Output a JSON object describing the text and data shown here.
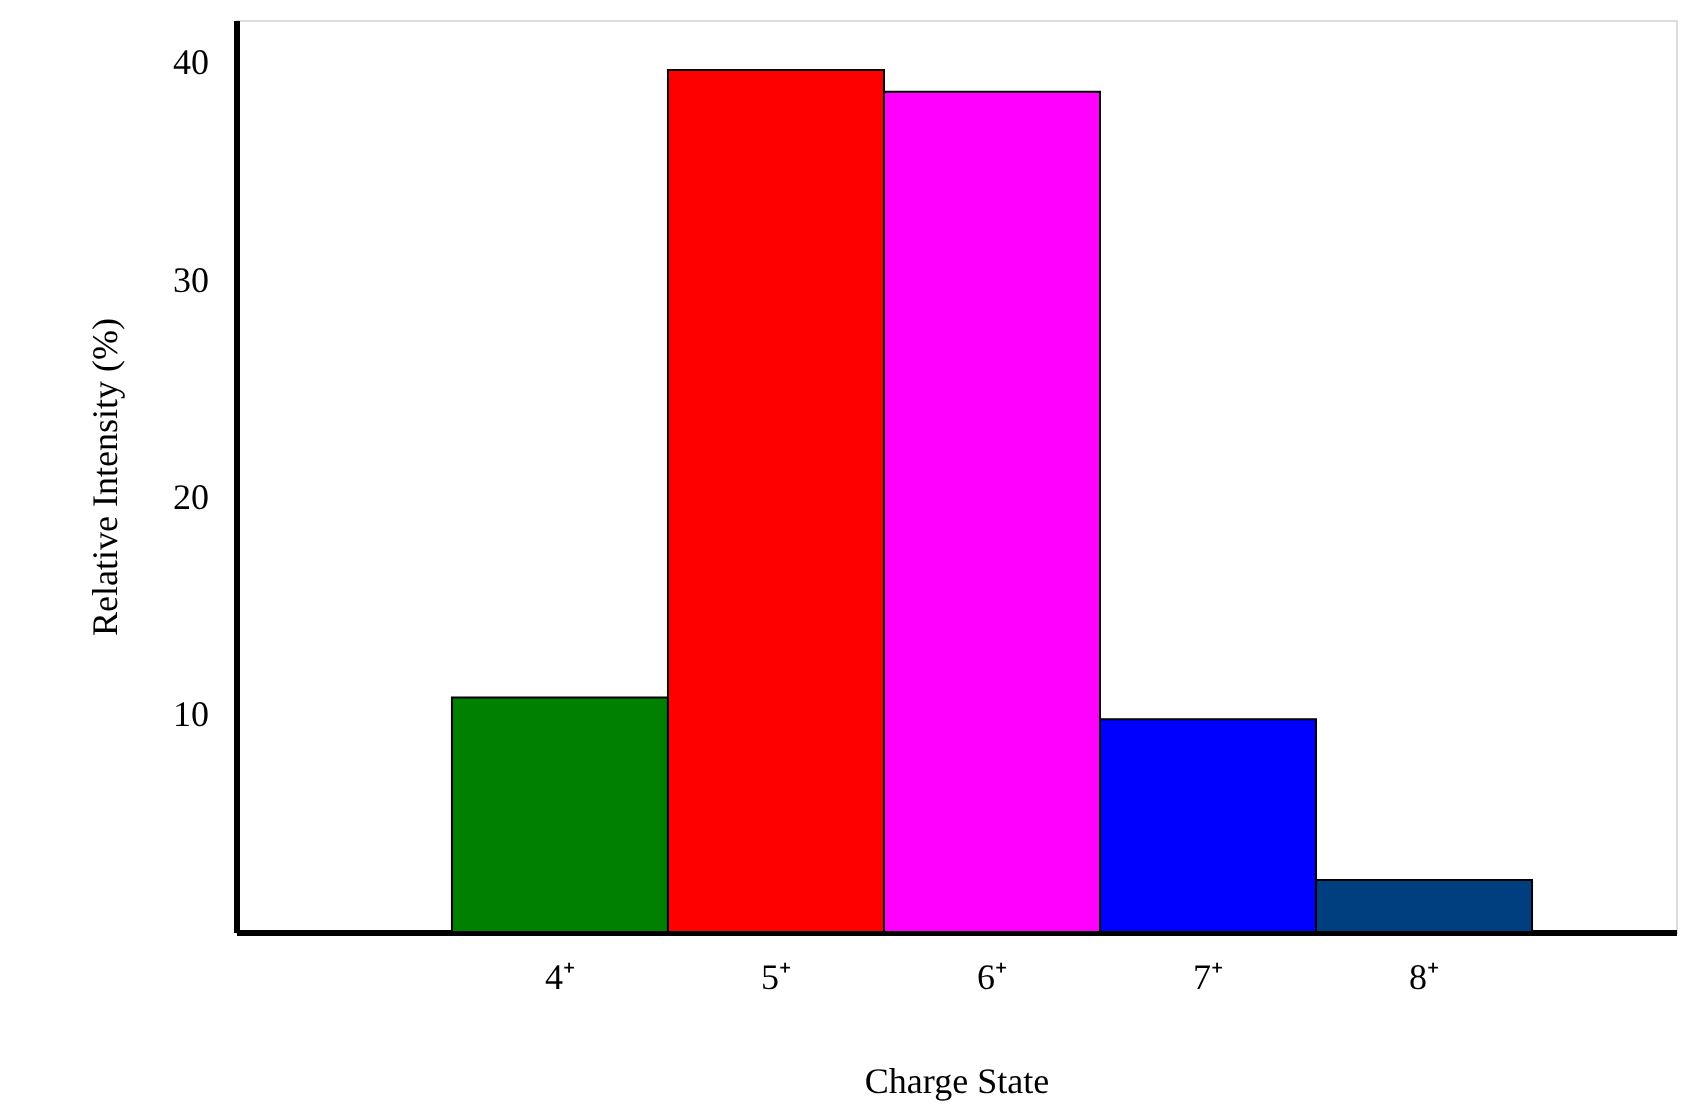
{
  "chart_data": {
    "type": "bar",
    "xlabel": "Charge State",
    "ylabel": "Relative Intensity (%)",
    "categories": [
      "4⁺",
      "5⁺",
      "6⁺",
      "7⁺",
      "8⁺"
    ],
    "values": [
      10.8,
      39.7,
      38.7,
      9.8,
      2.4
    ],
    "colors": [
      "#008000",
      "#ff0000",
      "#ff00ff",
      "#0000ff",
      "#003f7f"
    ],
    "ylim": [
      0,
      42
    ],
    "yticks": [
      10,
      20,
      30,
      40
    ],
    "grid": false
  }
}
